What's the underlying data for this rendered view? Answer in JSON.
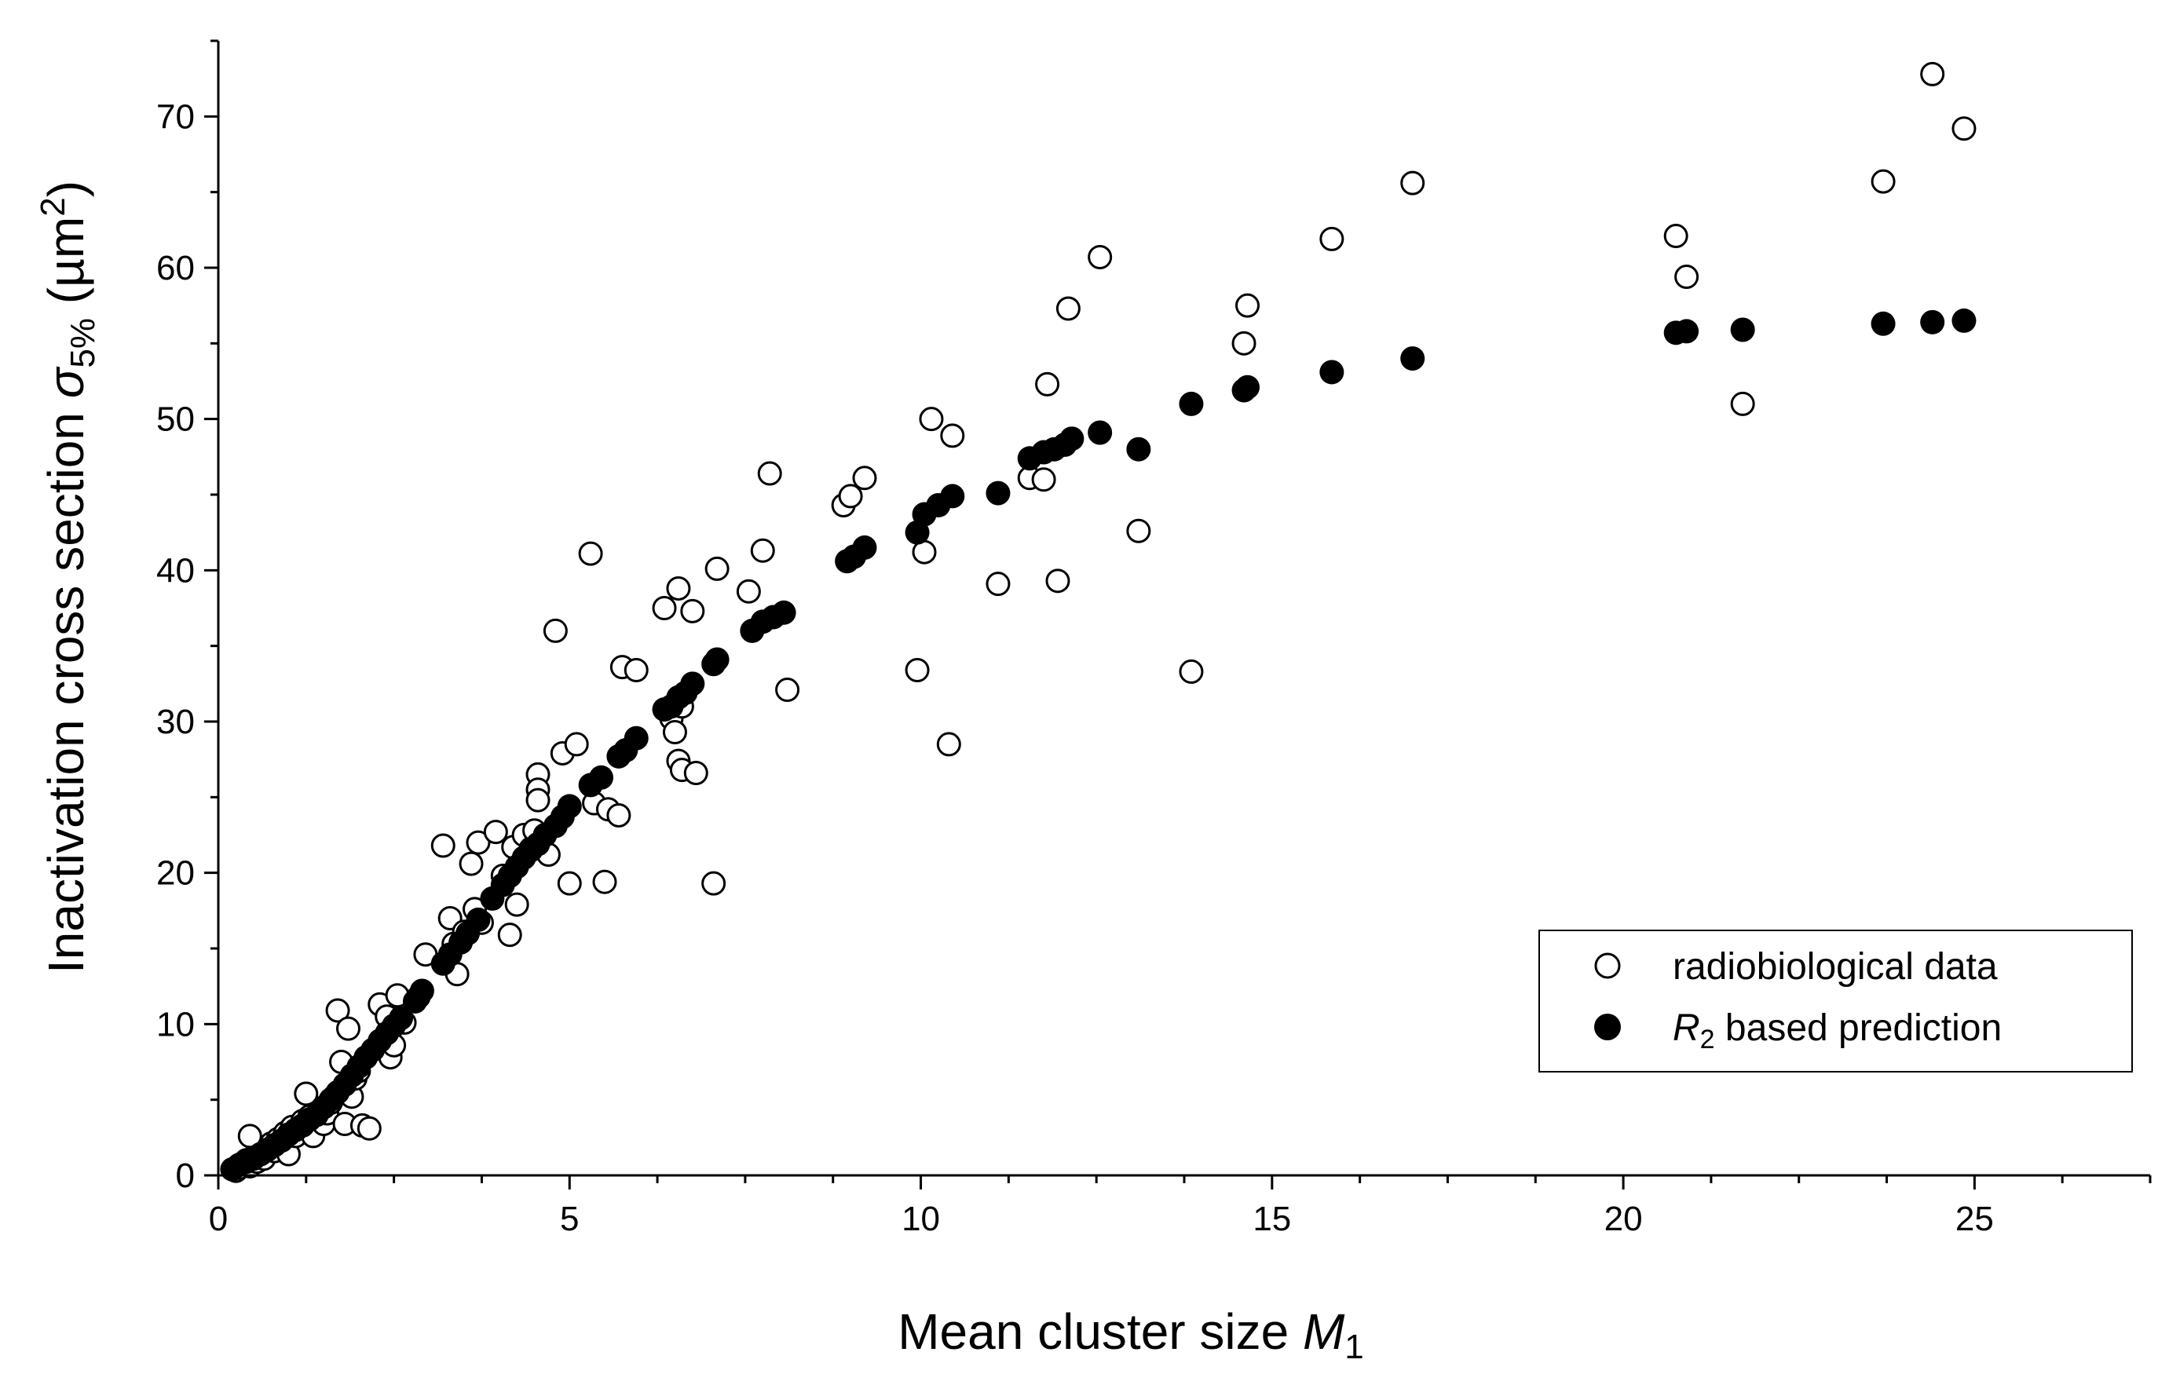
{
  "chart_data": {
    "type": "scatter",
    "title": "",
    "xlabel": {
      "main": "Mean cluster size ",
      "symbol": "M",
      "subscript": "1"
    },
    "ylabel": {
      "main": "Inactivation cross section ",
      "symbol": "σ",
      "subscript": "5%",
      "unit_open": " (µm",
      "unit_sup": "2",
      "unit_close": ")"
    },
    "xlim": [
      0,
      27.5
    ],
    "ylim": [
      0,
      75
    ],
    "x_ticks": [
      0,
      5,
      10,
      15,
      20,
      25
    ],
    "y_ticks": [
      0,
      10,
      20,
      30,
      40,
      50,
      60,
      70
    ],
    "x_minor_step": 1.25,
    "y_minor_step": 5,
    "grid": false,
    "legend_position": "bottom-right",
    "legend": [
      {
        "marker": "open-circle",
        "label": "radiobiological data"
      },
      {
        "marker": "filled-circle",
        "label_symbol": "R",
        "label_sub": "2",
        "label_rest": " based prediction"
      }
    ],
    "series": [
      {
        "name": "radiobiological data",
        "marker": "open-circle",
        "points": [
          [
            0.25,
            0.3
          ],
          [
            0.3,
            0.5
          ],
          [
            0.35,
            0.8
          ],
          [
            0.4,
            1.0
          ],
          [
            0.45,
            0.6
          ],
          [
            0.5,
            1.2
          ],
          [
            0.55,
            0.9
          ],
          [
            0.6,
            1.5
          ],
          [
            0.65,
            1.1
          ],
          [
            0.7,
            1.8
          ],
          [
            0.75,
            2.1
          ],
          [
            0.8,
            1.6
          ],
          [
            0.85,
            2.4
          ],
          [
            0.9,
            2.0
          ],
          [
            0.45,
            2.6
          ],
          [
            0.95,
            2.8
          ],
          [
            1.0,
            1.4
          ],
          [
            1.05,
            3.2
          ],
          [
            1.1,
            2.6
          ],
          [
            1.2,
            3.6
          ],
          [
            1.25,
            5.4
          ],
          [
            1.3,
            3.9
          ],
          [
            1.35,
            2.6
          ],
          [
            1.4,
            3.9
          ],
          [
            1.5,
            3.4
          ],
          [
            1.55,
            4.1
          ],
          [
            1.6,
            4.8
          ],
          [
            1.65,
            5.2
          ],
          [
            1.7,
            10.9
          ],
          [
            1.75,
            7.5
          ],
          [
            1.8,
            3.4
          ],
          [
            1.85,
            9.7
          ],
          [
            1.9,
            5.2
          ],
          [
            1.95,
            6.4
          ],
          [
            2.0,
            6.9
          ],
          [
            2.05,
            3.3
          ],
          [
            2.15,
            3.1
          ],
          [
            2.3,
            11.3
          ],
          [
            2.4,
            10.5
          ],
          [
            2.45,
            7.8
          ],
          [
            2.5,
            8.6
          ],
          [
            2.55,
            11.9
          ],
          [
            2.65,
            10.1
          ],
          [
            2.85,
            11.8
          ],
          [
            2.95,
            14.6
          ],
          [
            3.2,
            21.8
          ],
          [
            3.3,
            17.0
          ],
          [
            3.35,
            15.3
          ],
          [
            3.4,
            13.3
          ],
          [
            3.5,
            16.1
          ],
          [
            3.6,
            20.6
          ],
          [
            3.65,
            17.6
          ],
          [
            3.7,
            22.0
          ],
          [
            3.75,
            16.7
          ],
          [
            3.95,
            22.7
          ],
          [
            4.05,
            19.8
          ],
          [
            4.15,
            15.9
          ],
          [
            4.2,
            21.7
          ],
          [
            4.25,
            17.9
          ],
          [
            4.35,
            22.5
          ],
          [
            4.45,
            21.6
          ],
          [
            4.5,
            22.8
          ],
          [
            4.55,
            26.5
          ],
          [
            4.55,
            25.5
          ],
          [
            4.55,
            24.8
          ],
          [
            4.7,
            21.2
          ],
          [
            4.8,
            36.0
          ],
          [
            4.9,
            27.9
          ],
          [
            5.0,
            19.3
          ],
          [
            5.1,
            28.5
          ],
          [
            5.3,
            41.1
          ],
          [
            5.35,
            24.6
          ],
          [
            5.5,
            19.4
          ],
          [
            5.55,
            24.2
          ],
          [
            5.7,
            23.8
          ],
          [
            5.75,
            33.6
          ],
          [
            5.95,
            33.4
          ],
          [
            6.35,
            37.5
          ],
          [
            6.45,
            30.2
          ],
          [
            6.5,
            29.3
          ],
          [
            6.55,
            38.8
          ],
          [
            6.55,
            27.4
          ],
          [
            6.6,
            26.8
          ],
          [
            6.6,
            31.0
          ],
          [
            6.75,
            37.3
          ],
          [
            6.8,
            26.6
          ],
          [
            7.05,
            19.3
          ],
          [
            7.1,
            40.1
          ],
          [
            7.55,
            38.6
          ],
          [
            7.75,
            41.3
          ],
          [
            7.85,
            46.4
          ],
          [
            8.1,
            32.1
          ],
          [
            8.9,
            44.3
          ],
          [
            9.0,
            44.9
          ],
          [
            9.2,
            46.1
          ],
          [
            9.95,
            33.4
          ],
          [
            10.05,
            41.2
          ],
          [
            10.15,
            50.0
          ],
          [
            10.4,
            28.5
          ],
          [
            10.45,
            48.9
          ],
          [
            11.1,
            39.1
          ],
          [
            11.55,
            46.1
          ],
          [
            11.75,
            46.0
          ],
          [
            11.8,
            52.3
          ],
          [
            11.95,
            39.3
          ],
          [
            12.1,
            57.3
          ],
          [
            12.55,
            60.7
          ],
          [
            13.1,
            42.6
          ],
          [
            13.85,
            33.3
          ],
          [
            14.6,
            55.0
          ],
          [
            14.65,
            57.5
          ],
          [
            15.85,
            61.9
          ],
          [
            17.0,
            65.6
          ],
          [
            20.75,
            62.1
          ],
          [
            20.9,
            59.4
          ],
          [
            21.7,
            51.0
          ],
          [
            23.7,
            65.7
          ],
          [
            24.4,
            72.8
          ],
          [
            24.85,
            69.2
          ]
        ]
      },
      {
        "name": "R2 based prediction",
        "marker": "filled-circle",
        "points": [
          [
            0.2,
            0.4
          ],
          [
            0.3,
            0.7
          ],
          [
            0.4,
            0.9
          ],
          [
            0.5,
            1.1
          ],
          [
            0.6,
            1.4
          ],
          [
            0.7,
            1.7
          ],
          [
            0.8,
            2.0
          ],
          [
            0.9,
            2.3
          ],
          [
            1.0,
            2.7
          ],
          [
            1.1,
            3.0
          ],
          [
            1.2,
            3.3
          ],
          [
            1.3,
            3.7
          ],
          [
            1.4,
            4.0
          ],
          [
            1.5,
            4.5
          ],
          [
            1.6,
            5.0
          ],
          [
            1.7,
            5.5
          ],
          [
            1.8,
            6.0
          ],
          [
            1.9,
            6.6
          ],
          [
            2.0,
            7.2
          ],
          [
            2.1,
            7.8
          ],
          [
            2.2,
            8.3
          ],
          [
            2.3,
            8.9
          ],
          [
            2.4,
            9.4
          ],
          [
            2.5,
            9.9
          ],
          [
            2.6,
            10.4
          ],
          [
            2.8,
            11.5
          ],
          [
            2.9,
            12.2
          ],
          [
            3.2,
            14.0
          ],
          [
            3.3,
            14.6
          ],
          [
            3.45,
            15.4
          ],
          [
            3.55,
            16.0
          ],
          [
            3.7,
            16.9
          ],
          [
            3.9,
            18.3
          ],
          [
            4.05,
            19.2
          ],
          [
            4.15,
            19.8
          ],
          [
            4.25,
            20.4
          ],
          [
            4.35,
            21.0
          ],
          [
            4.45,
            21.5
          ],
          [
            4.55,
            21.9
          ],
          [
            4.65,
            22.5
          ],
          [
            4.8,
            23.1
          ],
          [
            4.9,
            23.7
          ],
          [
            5.0,
            24.4
          ],
          [
            5.3,
            25.8
          ],
          [
            5.45,
            26.3
          ],
          [
            5.7,
            27.7
          ],
          [
            5.8,
            28.1
          ],
          [
            5.95,
            28.9
          ],
          [
            6.35,
            30.8
          ],
          [
            6.45,
            31.0
          ],
          [
            6.55,
            31.6
          ],
          [
            6.65,
            31.9
          ],
          [
            6.75,
            32.5
          ],
          [
            7.05,
            33.8
          ],
          [
            7.1,
            34.1
          ],
          [
            7.6,
            36.0
          ],
          [
            7.75,
            36.6
          ],
          [
            7.9,
            36.9
          ],
          [
            8.05,
            37.2
          ],
          [
            8.95,
            40.6
          ],
          [
            9.05,
            40.9
          ],
          [
            9.2,
            41.5
          ],
          [
            9.95,
            42.5
          ],
          [
            10.05,
            43.7
          ],
          [
            10.25,
            44.3
          ],
          [
            10.45,
            44.9
          ],
          [
            11.1,
            45.1
          ],
          [
            11.55,
            47.4
          ],
          [
            11.75,
            47.8
          ],
          [
            11.9,
            48.0
          ],
          [
            12.05,
            48.3
          ],
          [
            12.15,
            48.7
          ],
          [
            12.55,
            49.1
          ],
          [
            13.1,
            48.0
          ],
          [
            13.85,
            51.0
          ],
          [
            14.6,
            51.9
          ],
          [
            14.65,
            52.1
          ],
          [
            15.85,
            53.1
          ],
          [
            17.0,
            54.0
          ],
          [
            20.75,
            55.7
          ],
          [
            20.9,
            55.8
          ],
          [
            21.7,
            55.9
          ],
          [
            23.7,
            56.3
          ],
          [
            24.4,
            56.4
          ],
          [
            24.85,
            56.5
          ]
        ]
      }
    ]
  }
}
